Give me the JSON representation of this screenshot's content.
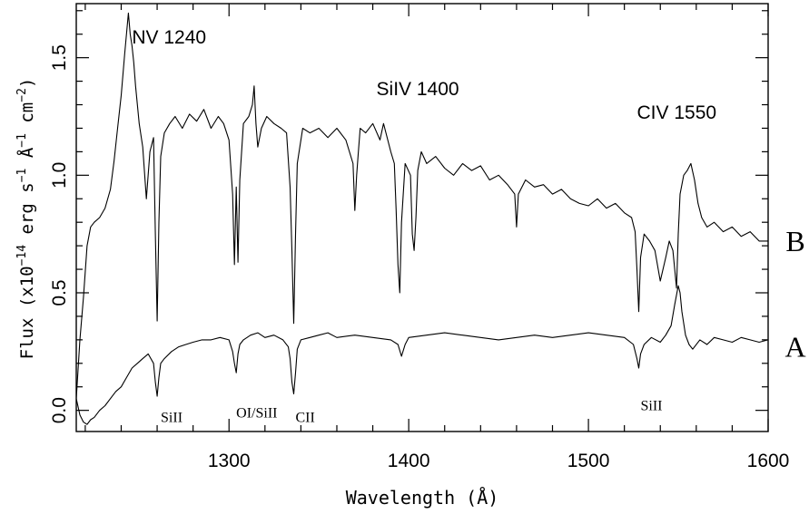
{
  "chart_data": {
    "type": "line",
    "title": "",
    "xlabel": "Wavelength (Å)",
    "ylabel": "Flux (x10^-14 erg s^-1 Å^-1 cm^-2)",
    "ylabel_parts": {
      "prefix": "Flux (x10",
      "exp1": "−14",
      "mid1": " erg s",
      "exp2": "−1",
      "mid2": " Å",
      "exp3": "−1",
      "mid3": " cm",
      "exp4": "−2",
      "suffix": ")"
    },
    "xlim": [
      1215,
      1600
    ],
    "ylim": [
      -0.09,
      1.73
    ],
    "x_ticks": [
      1300,
      1400,
      1500,
      1600
    ],
    "y_ticks": [
      0.0,
      0.5,
      1.0,
      1.5
    ],
    "x_tick_labels": [
      "1300",
      "1400",
      "1500",
      "1600"
    ],
    "y_tick_labels": [
      "0.0",
      "0.5",
      "1.0",
      "1.5"
    ],
    "grid": false,
    "legend": "none",
    "line_color": "#000000",
    "series": [
      {
        "name": "B",
        "x": [
          1215,
          1217,
          1219,
          1221,
          1223,
          1225,
          1228,
          1231,
          1234,
          1236,
          1238,
          1240,
          1242,
          1244,
          1245,
          1246,
          1247,
          1248,
          1250,
          1252,
          1254,
          1256,
          1258,
          1259,
          1260,
          1261,
          1262,
          1264,
          1267,
          1270,
          1274,
          1278,
          1282,
          1286,
          1290,
          1294,
          1297,
          1300,
          1302,
          1303,
          1304,
          1305,
          1306,
          1308,
          1311,
          1313,
          1314,
          1315,
          1316,
          1318,
          1321,
          1325,
          1329,
          1332,
          1334,
          1335,
          1336,
          1337,
          1338,
          1341,
          1345,
          1350,
          1355,
          1360,
          1365,
          1369,
          1370,
          1371,
          1372,
          1373,
          1376,
          1380,
          1384,
          1386,
          1390,
          1392,
          1393,
          1394,
          1395,
          1396,
          1398,
          1401,
          1402,
          1403,
          1404,
          1405,
          1407,
          1410,
          1415,
          1420,
          1425,
          1430,
          1435,
          1440,
          1445,
          1450,
          1455,
          1459,
          1460,
          1461,
          1465,
          1470,
          1475,
          1480,
          1485,
          1490,
          1495,
          1500,
          1505,
          1510,
          1515,
          1520,
          1524,
          1526,
          1527,
          1528,
          1529,
          1531,
          1534,
          1537,
          1540,
          1543,
          1545,
          1547,
          1548,
          1549,
          1550,
          1551,
          1553,
          1555,
          1557,
          1559,
          1561,
          1563,
          1566,
          1570,
          1575,
          1580,
          1585,
          1590,
          1595,
          1600
        ],
        "y": [
          0.05,
          0.3,
          0.48,
          0.7,
          0.78,
          0.8,
          0.82,
          0.86,
          0.94,
          1.06,
          1.2,
          1.34,
          1.52,
          1.69,
          1.6,
          1.55,
          1.48,
          1.38,
          1.22,
          1.12,
          0.9,
          1.1,
          1.16,
          0.75,
          0.38,
          0.8,
          1.08,
          1.18,
          1.22,
          1.25,
          1.2,
          1.26,
          1.23,
          1.28,
          1.2,
          1.25,
          1.22,
          1.15,
          0.92,
          0.62,
          0.95,
          0.63,
          0.98,
          1.22,
          1.25,
          1.3,
          1.38,
          1.22,
          1.12,
          1.2,
          1.25,
          1.22,
          1.2,
          1.18,
          0.95,
          0.68,
          0.37,
          0.75,
          1.05,
          1.2,
          1.18,
          1.2,
          1.16,
          1.2,
          1.15,
          1.05,
          0.85,
          1.0,
          1.1,
          1.2,
          1.18,
          1.22,
          1.15,
          1.22,
          1.1,
          1.05,
          0.85,
          0.62,
          0.5,
          0.8,
          1.05,
          1.0,
          0.75,
          0.68,
          0.82,
          1.02,
          1.1,
          1.05,
          1.08,
          1.03,
          1.0,
          1.05,
          1.02,
          1.04,
          0.98,
          1.0,
          0.96,
          0.92,
          0.78,
          0.92,
          0.98,
          0.95,
          0.96,
          0.92,
          0.94,
          0.9,
          0.88,
          0.87,
          0.9,
          0.86,
          0.88,
          0.84,
          0.82,
          0.76,
          0.6,
          0.42,
          0.65,
          0.75,
          0.72,
          0.68,
          0.55,
          0.65,
          0.72,
          0.68,
          0.6,
          0.52,
          0.75,
          0.92,
          1.0,
          1.02,
          1.05,
          0.98,
          0.88,
          0.82,
          0.78,
          0.8,
          0.76,
          0.78,
          0.74,
          0.76,
          0.72,
          0.72
        ]
      },
      {
        "name": "A",
        "x": [
          1215,
          1217,
          1219,
          1221,
          1223,
          1225,
          1228,
          1231,
          1234,
          1237,
          1240,
          1243,
          1246,
          1249,
          1252,
          1255,
          1258,
          1259,
          1260,
          1261,
          1262,
          1264,
          1268,
          1272,
          1276,
          1280,
          1285,
          1290,
          1295,
          1300,
          1302,
          1303,
          1304,
          1305,
          1306,
          1308,
          1312,
          1316,
          1320,
          1325,
          1330,
          1333,
          1334,
          1335,
          1336,
          1337,
          1338,
          1340,
          1345,
          1350,
          1355,
          1360,
          1370,
          1380,
          1390,
          1394,
          1396,
          1398,
          1400,
          1410,
          1420,
          1430,
          1440,
          1450,
          1460,
          1470,
          1480,
          1490,
          1500,
          1510,
          1520,
          1525,
          1527,
          1528,
          1529,
          1531,
          1535,
          1540,
          1543,
          1546,
          1548,
          1550,
          1551,
          1552,
          1554,
          1556,
          1558,
          1562,
          1566,
          1570,
          1575,
          1580,
          1585,
          1590,
          1595,
          1600
        ],
        "y": [
          0.05,
          -0.02,
          -0.05,
          -0.06,
          -0.04,
          -0.03,
          0.0,
          0.02,
          0.05,
          0.08,
          0.1,
          0.14,
          0.18,
          0.2,
          0.22,
          0.24,
          0.2,
          0.12,
          0.06,
          0.14,
          0.2,
          0.22,
          0.25,
          0.27,
          0.28,
          0.29,
          0.3,
          0.3,
          0.31,
          0.3,
          0.25,
          0.2,
          0.16,
          0.24,
          0.28,
          0.3,
          0.32,
          0.33,
          0.31,
          0.32,
          0.3,
          0.27,
          0.22,
          0.12,
          0.07,
          0.16,
          0.26,
          0.3,
          0.31,
          0.32,
          0.33,
          0.31,
          0.32,
          0.31,
          0.3,
          0.28,
          0.23,
          0.28,
          0.31,
          0.32,
          0.33,
          0.32,
          0.31,
          0.3,
          0.31,
          0.32,
          0.31,
          0.32,
          0.33,
          0.32,
          0.31,
          0.28,
          0.22,
          0.18,
          0.24,
          0.28,
          0.31,
          0.29,
          0.32,
          0.36,
          0.45,
          0.53,
          0.5,
          0.42,
          0.32,
          0.28,
          0.26,
          0.3,
          0.28,
          0.31,
          0.3,
          0.29,
          0.31,
          0.3,
          0.29,
          0.3
        ]
      }
    ],
    "annotations": [
      {
        "id": "nv",
        "text": "NV 1240",
        "x": 1246,
        "y": 1.56,
        "style": "sans"
      },
      {
        "id": "siiv",
        "text": "SiIV 1400",
        "x": 1382,
        "y": 1.34,
        "style": "sans"
      },
      {
        "id": "civ",
        "text": "CIV 1550",
        "x": 1527,
        "y": 1.24,
        "style": "sans"
      },
      {
        "id": "sii-1",
        "text": "SiII",
        "x": 1262,
        "y": -0.05,
        "style": "serif"
      },
      {
        "id": "oi-sii",
        "text": "OI/SiII",
        "x": 1304,
        "y": -0.03,
        "style": "serif"
      },
      {
        "id": "cii",
        "text": "CII",
        "x": 1337,
        "y": -0.05,
        "style": "serif"
      },
      {
        "id": "sii-2",
        "text": "SiII",
        "x": 1529,
        "y": 0.0,
        "style": "serif"
      }
    ],
    "series_labels": [
      {
        "text": "B",
        "y": 0.72
      },
      {
        "text": "A",
        "y": 0.27
      }
    ]
  }
}
